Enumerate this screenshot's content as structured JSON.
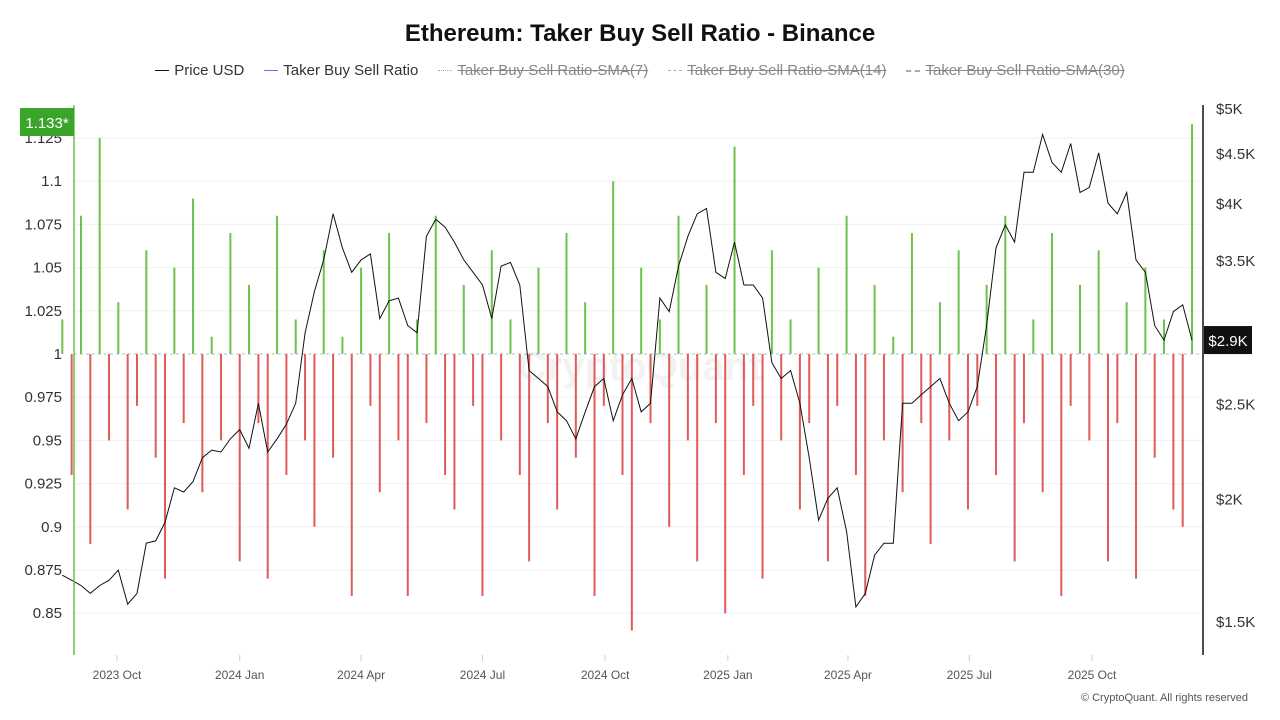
{
  "title": "Ethereum: Taker Buy Sell Ratio - Binance",
  "legend": [
    {
      "label": "Price USD",
      "color": "#111111",
      "active": true
    },
    {
      "label": "Taker Buy Sell Ratio",
      "color": "#7b6fd6",
      "active": true
    },
    {
      "label": "Taker Buy Sell Ratio-SMA(7)",
      "active": false
    },
    {
      "label": "Taker Buy Sell Ratio-SMA(14)",
      "active": false
    },
    {
      "label": "Taker Buy Sell Ratio-SMA(30)",
      "active": false
    }
  ],
  "current_ratio_label": "1.133*",
  "current_price_label": "$2.9K",
  "watermark": "CryptoQuant",
  "copyright": "© CryptoQuant. All rights reserved",
  "colors": {
    "above": "#6cc24a",
    "below": "#e05a5a",
    "badge": "#3aa52a",
    "price": "#111111"
  },
  "chart_data": {
    "type": "bar+line",
    "left_axis": {
      "ticks": [
        0.85,
        0.875,
        0.9,
        0.925,
        0.95,
        0.975,
        1,
        1.025,
        1.05,
        1.075,
        1.1,
        1.125
      ],
      "labels": [
        "0.85",
        "0.875",
        "0.9",
        "0.925",
        "0.95",
        "0.975",
        "1",
        "1.025",
        "1.05",
        "1.075",
        "1.1",
        "1.125"
      ],
      "baseline": 1
    },
    "right_axis": {
      "scale": "log",
      "ticks": [
        1500,
        2000,
        2500,
        3500,
        4000,
        4500,
        5000
      ],
      "labels": [
        "$1.5K",
        "$2K",
        "$2.5K",
        "$3.5K",
        "$4K",
        "$4.5K",
        "$5K"
      ]
    },
    "x_ticks": [
      {
        "date": "2023-10-01",
        "label": "2023 Oct"
      },
      {
        "date": "2024-01-01",
        "label": "2024 Jan"
      },
      {
        "date": "2024-04-01",
        "label": "2024 Apr"
      },
      {
        "date": "2024-07-01",
        "label": "2024 Jul"
      },
      {
        "date": "2024-10-01",
        "label": "2024 Oct"
      },
      {
        "date": "2025-01-01",
        "label": "2025 Jan"
      },
      {
        "date": "2025-04-01",
        "label": "2025 Apr"
      },
      {
        "date": "2025-07-01",
        "label": "2025 Jul"
      },
      {
        "date": "2025-10-01",
        "label": "2025 Oct"
      }
    ],
    "x": [
      "2023-08-21",
      "2023-08-28",
      "2023-09-04",
      "2023-09-11",
      "2023-09-18",
      "2023-09-25",
      "2023-10-02",
      "2023-10-09",
      "2023-10-16",
      "2023-10-23",
      "2023-10-30",
      "2023-11-06",
      "2023-11-13",
      "2023-11-20",
      "2023-11-27",
      "2023-12-04",
      "2023-12-11",
      "2023-12-18",
      "2023-12-25",
      "2024-01-01",
      "2024-01-08",
      "2024-01-15",
      "2024-01-22",
      "2024-01-29",
      "2024-02-05",
      "2024-02-12",
      "2024-02-19",
      "2024-02-26",
      "2024-03-04",
      "2024-03-11",
      "2024-03-18",
      "2024-03-25",
      "2024-04-01",
      "2024-04-08",
      "2024-04-15",
      "2024-04-22",
      "2024-04-29",
      "2024-05-06",
      "2024-05-13",
      "2024-05-20",
      "2024-05-27",
      "2024-06-03",
      "2024-06-10",
      "2024-06-17",
      "2024-06-24",
      "2024-07-01",
      "2024-07-08",
      "2024-07-15",
      "2024-07-22",
      "2024-07-29",
      "2024-08-05",
      "2024-08-12",
      "2024-08-19",
      "2024-08-26",
      "2024-09-02",
      "2024-09-09",
      "2024-09-16",
      "2024-09-23",
      "2024-09-30",
      "2024-10-07",
      "2024-10-14",
      "2024-10-21",
      "2024-10-28",
      "2024-11-04",
      "2024-11-11",
      "2024-11-18",
      "2024-11-25",
      "2024-12-02",
      "2024-12-09",
      "2024-12-16",
      "2024-12-23",
      "2024-12-30",
      "2025-01-06",
      "2025-01-13",
      "2025-01-20",
      "2025-01-27",
      "2025-02-03",
      "2025-02-10",
      "2025-02-17",
      "2025-02-24",
      "2025-03-03",
      "2025-03-10",
      "2025-03-17",
      "2025-03-24",
      "2025-03-31",
      "2025-04-07",
      "2025-04-14",
      "2025-04-21",
      "2025-04-28",
      "2025-05-05",
      "2025-05-12",
      "2025-05-19",
      "2025-05-26",
      "2025-06-02",
      "2025-06-09",
      "2025-06-16",
      "2025-06-23",
      "2025-06-30",
      "2025-07-07",
      "2025-07-14",
      "2025-07-21",
      "2025-07-28",
      "2025-08-04",
      "2025-08-11",
      "2025-08-18",
      "2025-08-25",
      "2025-09-01",
      "2025-09-08",
      "2025-09-15",
      "2025-09-22",
      "2025-09-29",
      "2025-10-06",
      "2025-10-13",
      "2025-10-20",
      "2025-10-27",
      "2025-11-03",
      "2025-11-10",
      "2025-11-17",
      "2025-11-24",
      "2025-12-01",
      "2025-12-08",
      "2025-12-15"
    ],
    "series": [
      {
        "name": "Price USD",
        "axis": "right",
        "type": "line",
        "values": [
          1670,
          1650,
          1630,
          1600,
          1630,
          1650,
          1690,
          1560,
          1600,
          1800,
          1810,
          1890,
          2050,
          2030,
          2080,
          2200,
          2240,
          2230,
          2300,
          2350,
          2250,
          2500,
          2230,
          2300,
          2380,
          2500,
          2950,
          3250,
          3500,
          3900,
          3600,
          3400,
          3500,
          3550,
          3050,
          3180,
          3200,
          3000,
          2950,
          3700,
          3850,
          3780,
          3650,
          3500,
          3400,
          3300,
          3050,
          3450,
          3480,
          3300,
          2700,
          2650,
          2600,
          2450,
          2400,
          2300,
          2450,
          2600,
          2650,
          2400,
          2550,
          2650,
          2450,
          2500,
          3200,
          3100,
          3450,
          3700,
          3900,
          3950,
          3400,
          3350,
          3650,
          3300,
          3300,
          3200,
          2750,
          2650,
          2700,
          2500,
          2200,
          1900,
          2000,
          2050,
          1850,
          1550,
          1600,
          1750,
          1800,
          1800,
          2500,
          2500,
          2550,
          2600,
          2650,
          2500,
          2400,
          2450,
          2600,
          3000,
          3600,
          3800,
          3650,
          4300,
          4300,
          4700,
          4400,
          4300,
          4600,
          4100,
          4150,
          4500,
          4000,
          3900,
          4100,
          3500,
          3400,
          3000,
          2900,
          3100,
          3150,
          2900
        ]
      },
      {
        "name": "Taker Buy Sell Ratio",
        "axis": "left",
        "type": "bar",
        "values": [
          1.02,
          0.93,
          1.08,
          0.89,
          1.125,
          0.95,
          1.03,
          0.91,
          0.97,
          1.06,
          0.94,
          0.87,
          1.05,
          0.96,
          1.09,
          0.92,
          1.01,
          0.95,
          1.07,
          0.88,
          1.04,
          0.96,
          0.87,
          1.08,
          0.93,
          1.02,
          0.95,
          0.9,
          1.06,
          0.94,
          1.01,
          0.86,
          1.05,
          0.97,
          0.92,
          1.07,
          0.95,
          0.86,
          1.02,
          0.96,
          1.08,
          0.93,
          0.91,
          1.04,
          0.97,
          0.86,
          1.06,
          0.95,
          1.02,
          0.93,
          0.88,
          1.05,
          0.96,
          0.91,
          1.07,
          0.94,
          1.03,
          0.86,
          0.97,
          1.1,
          0.93,
          0.84,
          1.05,
          0.96,
          1.02,
          0.9,
          1.08,
          0.95,
          0.88,
          1.04,
          0.96,
          0.85,
          1.12,
          0.93,
          0.97,
          0.87,
          1.06,
          0.95,
          1.02,
          0.91,
          0.96,
          1.05,
          0.88,
          0.97,
          1.08,
          0.93,
          0.86,
          1.04,
          0.95,
          1.01,
          0.92,
          1.07,
          0.96,
          0.89,
          1.03,
          0.95,
          1.06,
          0.91,
          0.97,
          1.04,
          0.93,
          1.08,
          0.88,
          0.96,
          1.02,
          0.92,
          1.07,
          0.86,
          0.97,
          1.04,
          0.95,
          1.06,
          0.88,
          0.96,
          1.03,
          0.87,
          1.05,
          0.94,
          1.02,
          0.91,
          0.9,
          1.133
        ]
      }
    ],
    "grid": true
  }
}
